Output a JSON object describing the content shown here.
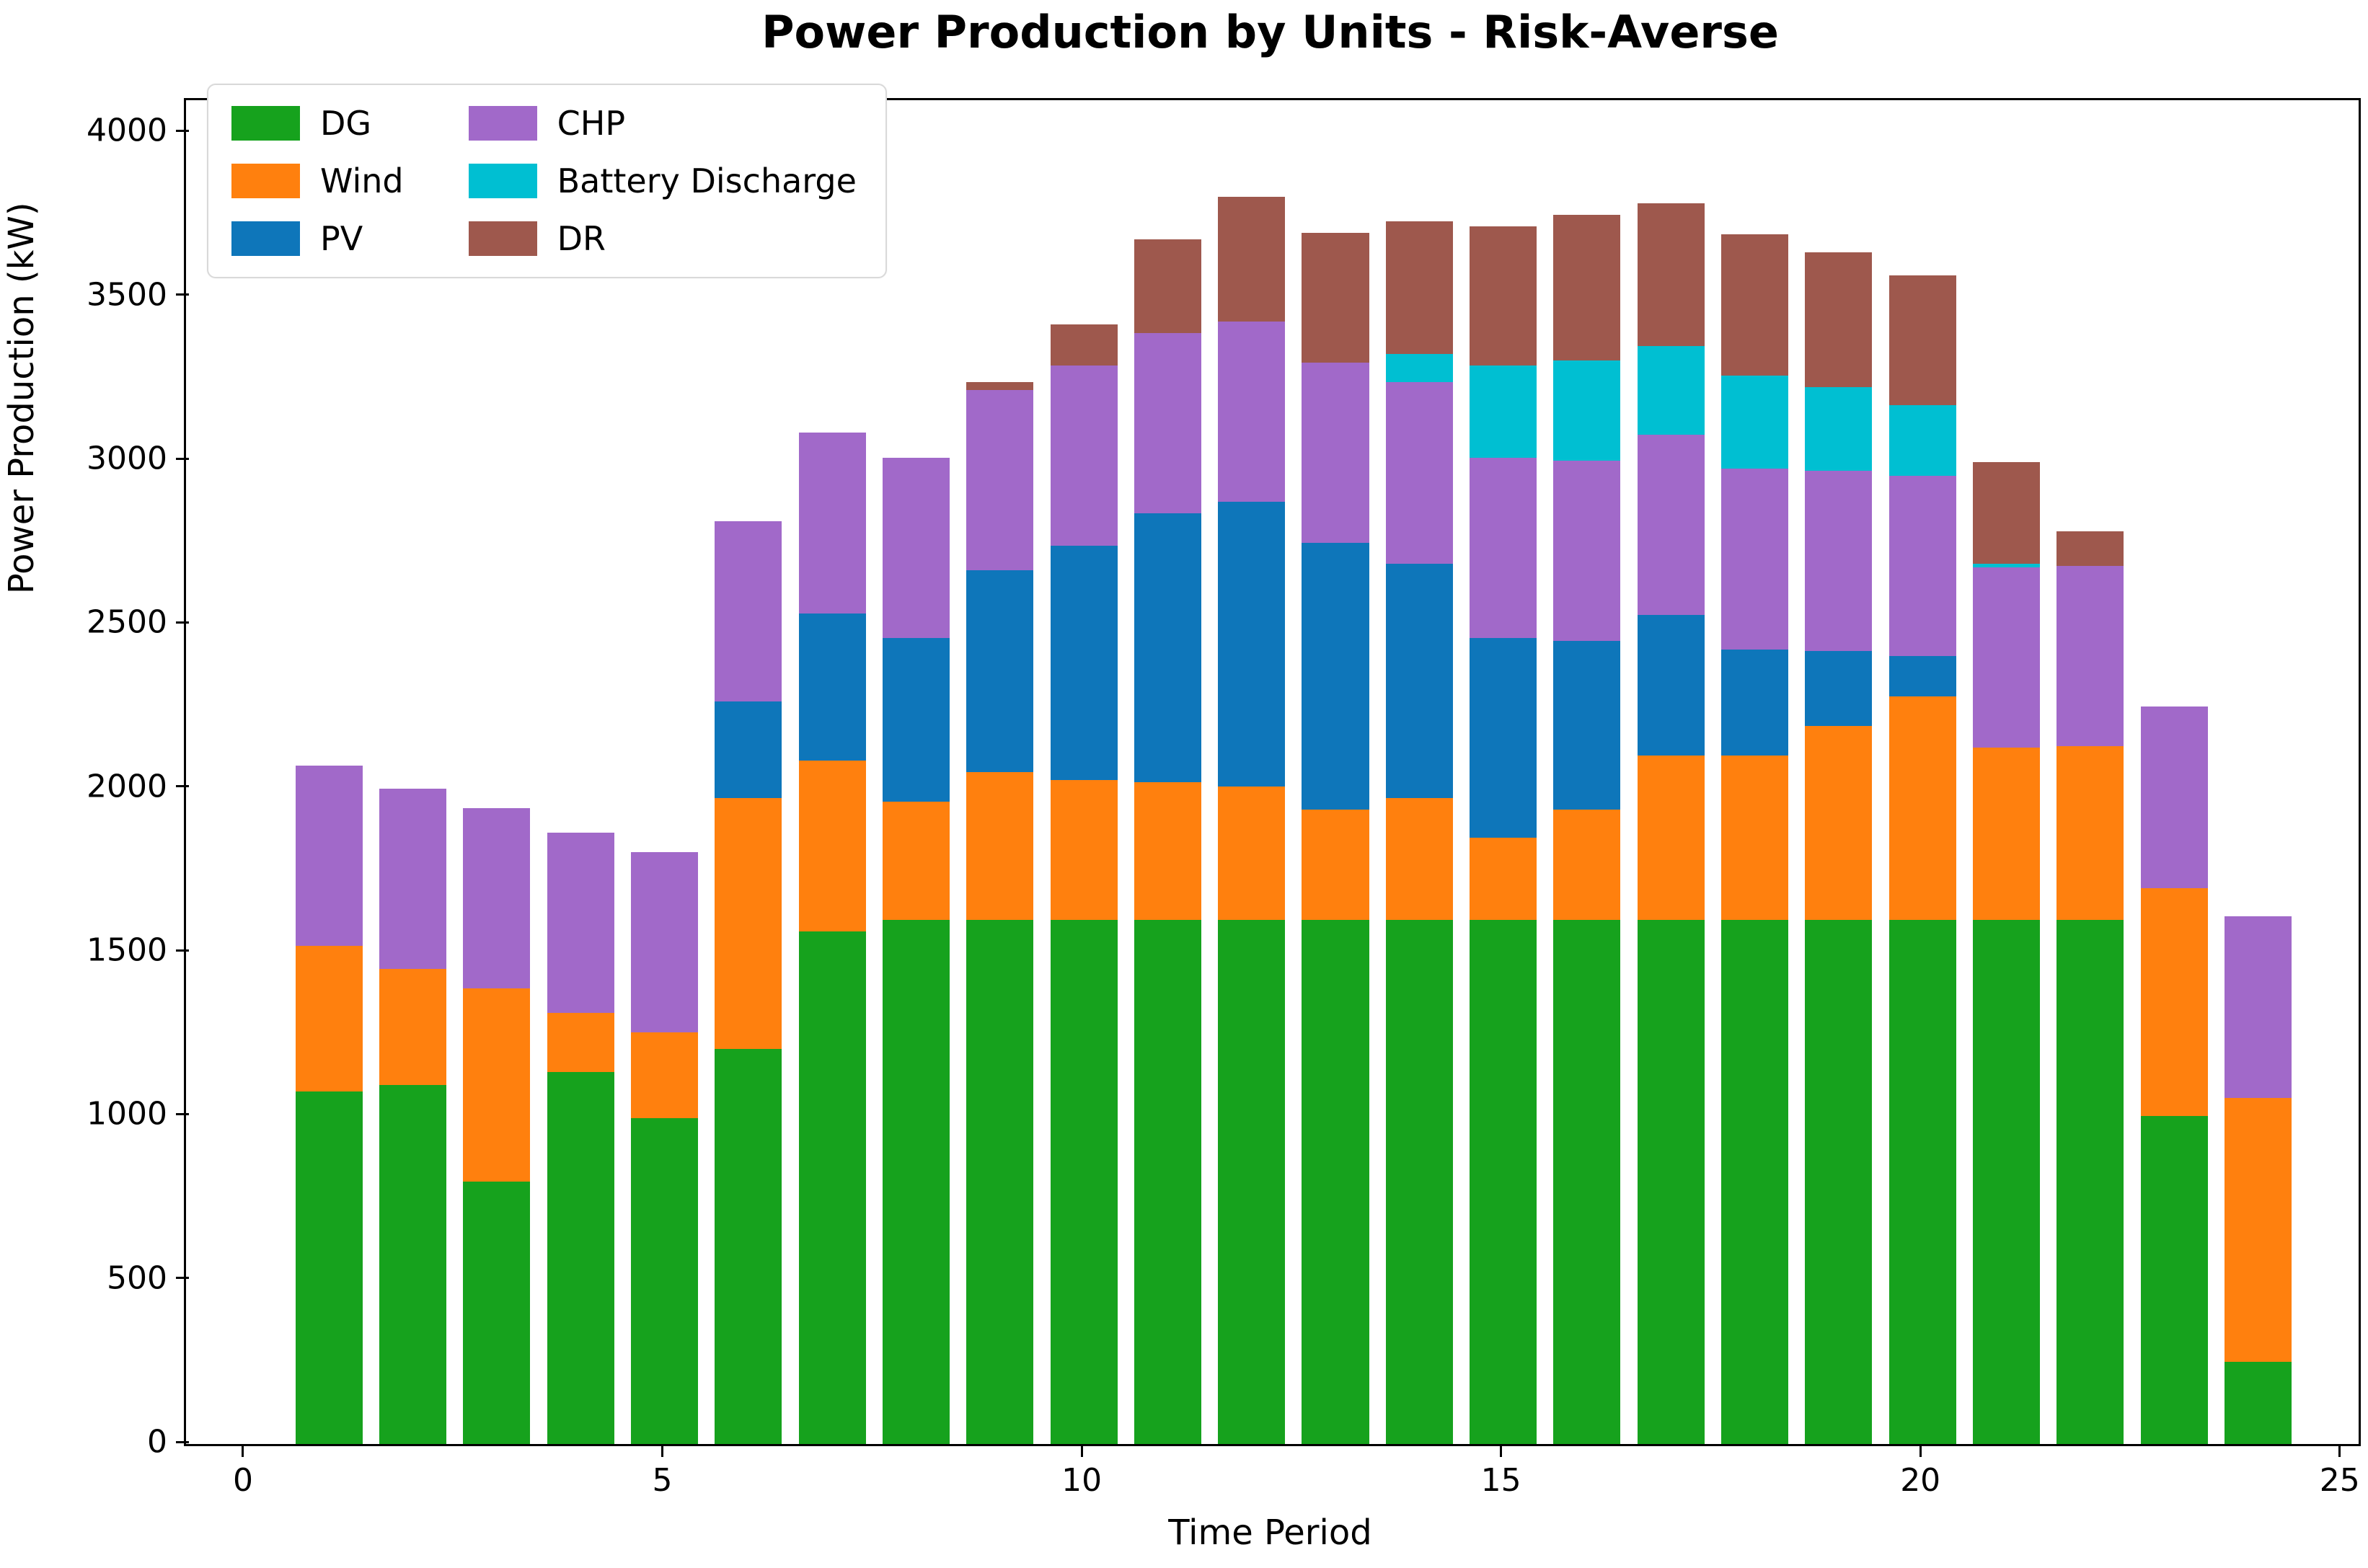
{
  "title": "Power Production by Units - Risk-Averse",
  "axes": {
    "xlabel": "Time Period",
    "ylabel": "Power Production (kW)",
    "x_ticks": [
      0,
      5,
      10,
      15,
      20,
      25
    ],
    "y_ticks": [
      0,
      500,
      1000,
      1500,
      2000,
      2500,
      3000,
      3500,
      4000
    ],
    "xlim": [
      -0.705,
      25.2
    ],
    "ylim": [
      0,
      4100
    ]
  },
  "colors": {
    "DG": "#16a21d",
    "Wind": "#ff800e",
    "PV": "#0e76ba",
    "CHP": "#a169c9",
    "Battery Discharge": "#00bfd2",
    "DR": "#9e584d"
  },
  "legend": {
    "column1": [
      "DG",
      "Wind",
      "PV"
    ],
    "column2": [
      "CHP",
      "Battery Discharge",
      "DR"
    ]
  },
  "chart_data": {
    "type": "bar",
    "stacked": true,
    "bar_width": 0.8,
    "x": [
      1,
      2,
      3,
      4,
      5,
      6,
      7,
      8,
      9,
      10,
      11,
      12,
      13,
      14,
      15,
      16,
      17,
      18,
      19,
      20,
      21,
      22,
      23,
      24
    ],
    "series": [
      {
        "name": "DG",
        "values": [
          1075,
          1095,
          800,
          1135,
          995,
          1205,
          1565,
          1600,
          1600,
          1600,
          1600,
          1600,
          1600,
          1600,
          1600,
          1600,
          1600,
          1600,
          1600,
          1600,
          1600,
          1600,
          1000,
          250
        ]
      },
      {
        "name": "Wind",
        "values": [
          445,
          355,
          590,
          180,
          260,
          765,
          520,
          360,
          450,
          425,
          420,
          405,
          335,
          370,
          250,
          335,
          500,
          500,
          590,
          680,
          525,
          530,
          695,
          805
        ]
      },
      {
        "name": "PV",
        "values": [
          0,
          0,
          0,
          0,
          0,
          295,
          450,
          500,
          615,
          715,
          820,
          870,
          815,
          715,
          610,
          515,
          430,
          325,
          230,
          125,
          0,
          0,
          0,
          0
        ]
      },
      {
        "name": "CHP",
        "values": [
          550,
          550,
          550,
          550,
          550,
          550,
          550,
          550,
          550,
          550,
          550,
          550,
          550,
          555,
          550,
          550,
          550,
          550,
          550,
          550,
          550,
          550,
          555,
          555
        ]
      },
      {
        "name": "Battery Discharge",
        "values": [
          0,
          0,
          0,
          0,
          0,
          0,
          0,
          0,
          0,
          0,
          0,
          0,
          0,
          85,
          280,
          305,
          270,
          285,
          255,
          215,
          10,
          0,
          0,
          0
        ]
      },
      {
        "name": "DR",
        "values": [
          0,
          0,
          0,
          0,
          0,
          0,
          0,
          0,
          25,
          125,
          285,
          380,
          395,
          405,
          425,
          445,
          435,
          430,
          410,
          395,
          310,
          105,
          0,
          0
        ]
      }
    ],
    "totals": [
      2070,
      2000,
      1940,
      1865,
      1805,
      2815,
      3085,
      3010,
      3240,
      3415,
      3675,
      3805,
      3695,
      3730,
      3715,
      3750,
      3785,
      3690,
      3635,
      3565,
      2995,
      2785,
      2250,
      1610
    ]
  }
}
